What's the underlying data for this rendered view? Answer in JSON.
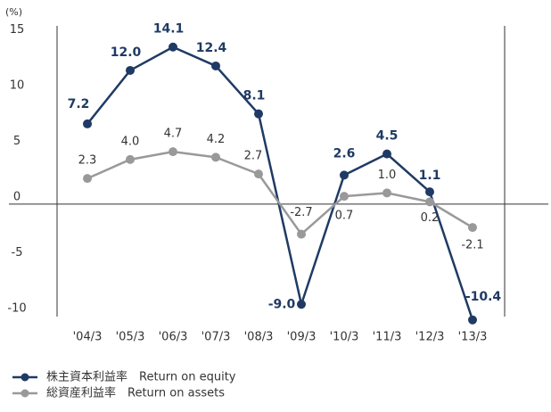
{
  "chart_data": {
    "type": "line",
    "y_label": "(%)",
    "categories": [
      "'04/3",
      "'05/3",
      "'06/3",
      "'07/3",
      "'08/3",
      "'09/3",
      "'10/3",
      "'11/3",
      "'12/3",
      "'13/3"
    ],
    "series": [
      {
        "name": "株主資本利益率　Return on equity",
        "color": "#1f3a64",
        "values": [
          7.2,
          12.0,
          14.1,
          12.4,
          8.1,
          -9.0,
          2.6,
          4.5,
          1.1,
          -10.4
        ],
        "value_labels": [
          "7.2",
          "12.0",
          "14.1",
          "12.4",
          "8.1",
          "-9.0",
          "2.6",
          "4.5",
          "1.1",
          "-10.4"
        ]
      },
      {
        "name": "総資産利益率　Return on assets",
        "color": "#999999",
        "values": [
          2.3,
          4.0,
          4.7,
          4.2,
          2.7,
          -2.7,
          0.7,
          1.0,
          0.2,
          -2.1
        ],
        "value_labels": [
          "2.3",
          "4.0",
          "4.7",
          "4.2",
          "2.7",
          "-2.7",
          "0.7",
          "1.0",
          "0.2",
          "-2.1"
        ]
      }
    ],
    "ylim": [
      -10.5,
      16
    ],
    "yticks": [
      15,
      10,
      5,
      0,
      -5,
      -10
    ]
  }
}
